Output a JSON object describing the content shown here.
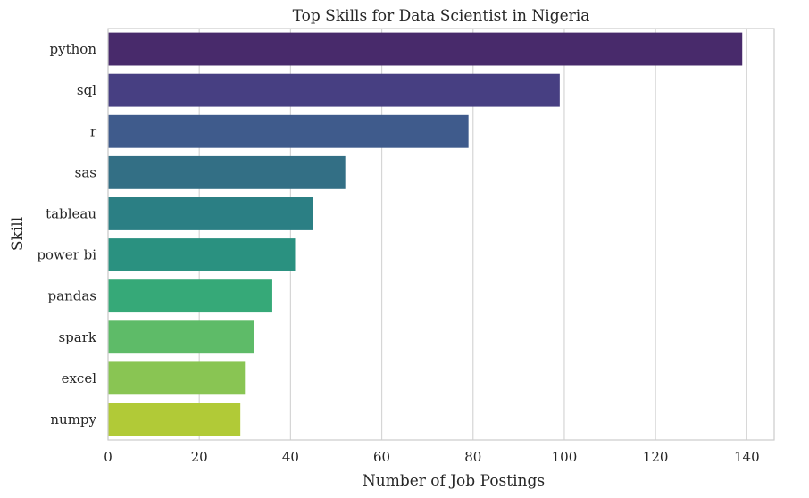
{
  "chart_data": {
    "type": "bar",
    "orientation": "horizontal",
    "title": "Top Skills for Data Scientist in Nigeria",
    "xlabel": "Number of Job Postings",
    "ylabel": "Skill",
    "categories": [
      "python",
      "sql",
      "r",
      "sas",
      "tableau",
      "power bi",
      "pandas",
      "spark",
      "excel",
      "numpy"
    ],
    "values": [
      139,
      99,
      79,
      52,
      45,
      41,
      36,
      32,
      30,
      29
    ],
    "colors": [
      "#482a6b",
      "#473f82",
      "#3f5b8c",
      "#336f85",
      "#2b7f84",
      "#2a9180",
      "#36a978",
      "#5ebb68",
      "#89c553",
      "#b1ca37"
    ],
    "xlim": [
      0,
      146
    ],
    "xticks": [
      0,
      20,
      40,
      60,
      80,
      100,
      120,
      140
    ],
    "grid": true,
    "legend": "none"
  }
}
